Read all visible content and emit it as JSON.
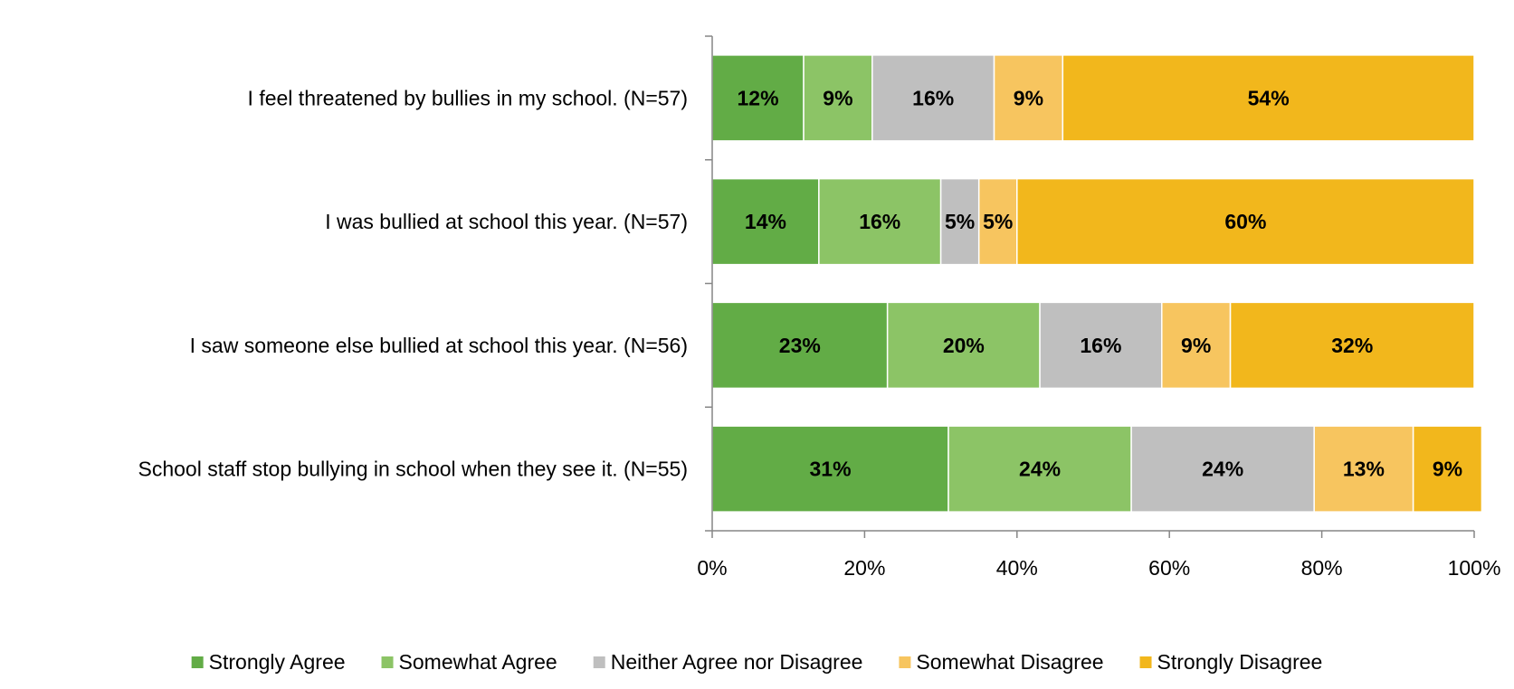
{
  "chart_data": {
    "type": "bar",
    "orientation": "horizontal",
    "stacked": "percent",
    "title": "",
    "xlabel": "",
    "ylabel": "",
    "xlim": [
      0,
      100
    ],
    "categories": [
      "I feel threatened by bullies in my school. (N=57)",
      "I was bullied at school this year. (N=57)",
      "I saw someone else bullied at school this year. (N=56)",
      "School staff stop bullying in school when they see it. (N=55)"
    ],
    "x_ticks": [
      "0%",
      "20%",
      "40%",
      "60%",
      "80%",
      "100%"
    ],
    "series": [
      {
        "name": "Strongly Agree",
        "color": "#62AC46",
        "values": [
          12,
          14,
          23,
          31
        ],
        "labels": [
          "12%",
          "14%",
          "23%",
          "31%"
        ]
      },
      {
        "name": "Somewhat Agree",
        "color": "#8CC466",
        "values": [
          9,
          16,
          20,
          24
        ],
        "labels": [
          "9%",
          "16%",
          "20%",
          "24%"
        ]
      },
      {
        "name": "Neither Agree nor Disagree",
        "color": "#BFBFBF",
        "values": [
          16,
          5,
          16,
          24
        ],
        "labels": [
          "16%",
          "5%",
          "16%",
          "24%"
        ]
      },
      {
        "name": "Somewhat Disagree",
        "color": "#F7C55F",
        "values": [
          9,
          5,
          9,
          13
        ],
        "labels": [
          "9%",
          "5%",
          "9%",
          "13%"
        ]
      },
      {
        "name": "Strongly Disagree",
        "color": "#F2B71C",
        "values": [
          54,
          60,
          32,
          9
        ],
        "labels": [
          "54%",
          "60%",
          "32%",
          "9%"
        ]
      }
    ],
    "grid": false,
    "legend_position": "bottom"
  }
}
